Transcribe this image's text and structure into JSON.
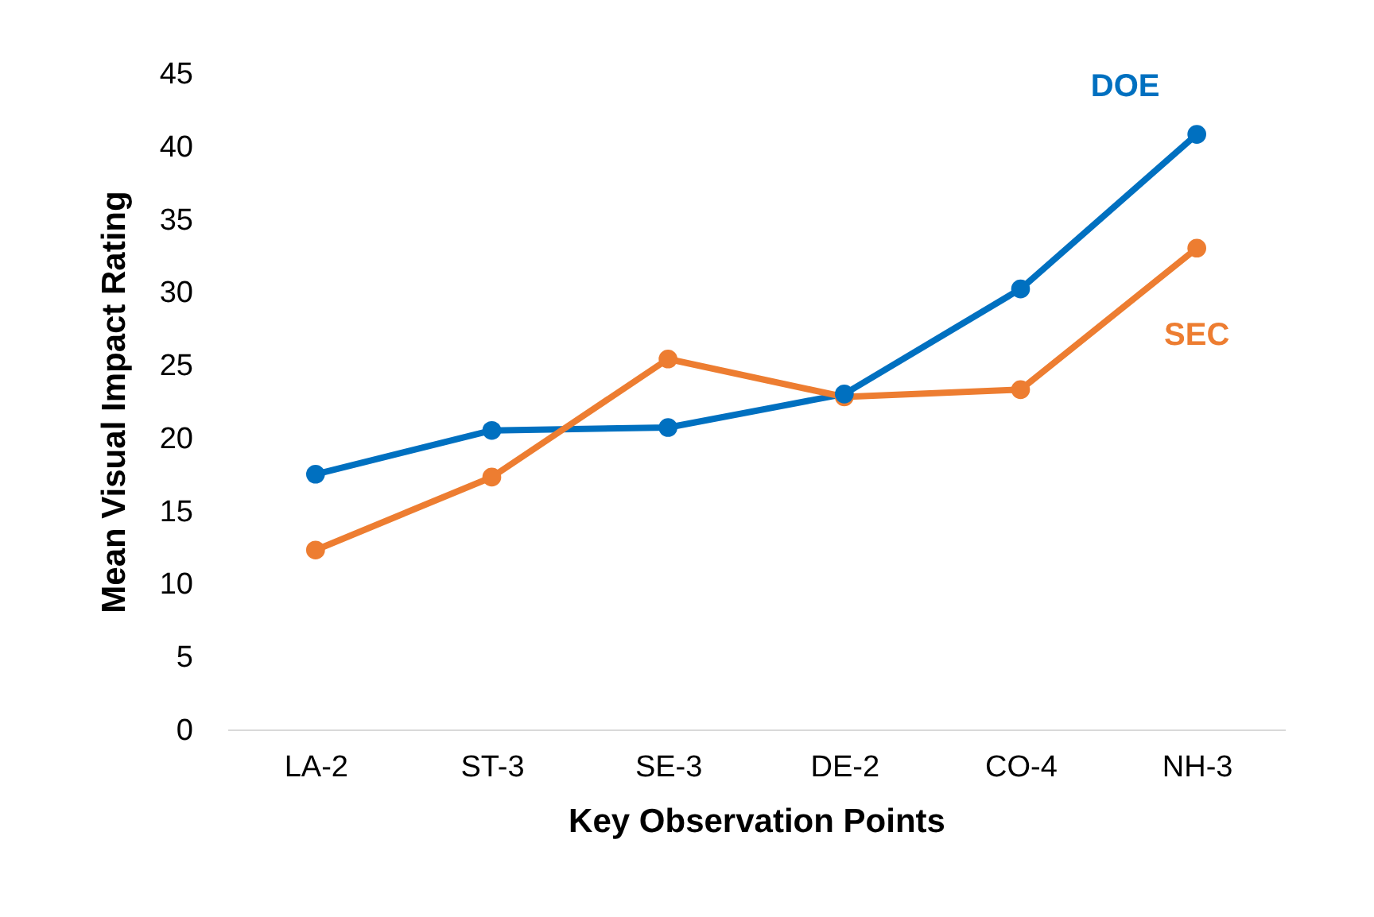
{
  "chart_data": {
    "type": "line",
    "xlabel": "Key Observation Points",
    "ylabel": "Mean Visual Impact Rating",
    "categories": [
      "LA-2",
      "ST-3",
      "SE-3",
      "DE-2",
      "CO-4",
      "NH-3"
    ],
    "series": [
      {
        "name": "DOE",
        "color": "#0070c0",
        "values": [
          17.5,
          20.5,
          20.7,
          23.0,
          30.2,
          40.8
        ]
      },
      {
        "name": "SEC",
        "color": "#ed7d31",
        "values": [
          12.3,
          17.3,
          25.4,
          22.8,
          23.3,
          33.0
        ]
      }
    ],
    "ylim": [
      0,
      45
    ],
    "yticks": [
      0,
      5,
      10,
      15,
      20,
      25,
      30,
      35,
      40,
      45
    ],
    "grid": false,
    "legend": false,
    "marker": "circle",
    "line_style": "solid"
  }
}
